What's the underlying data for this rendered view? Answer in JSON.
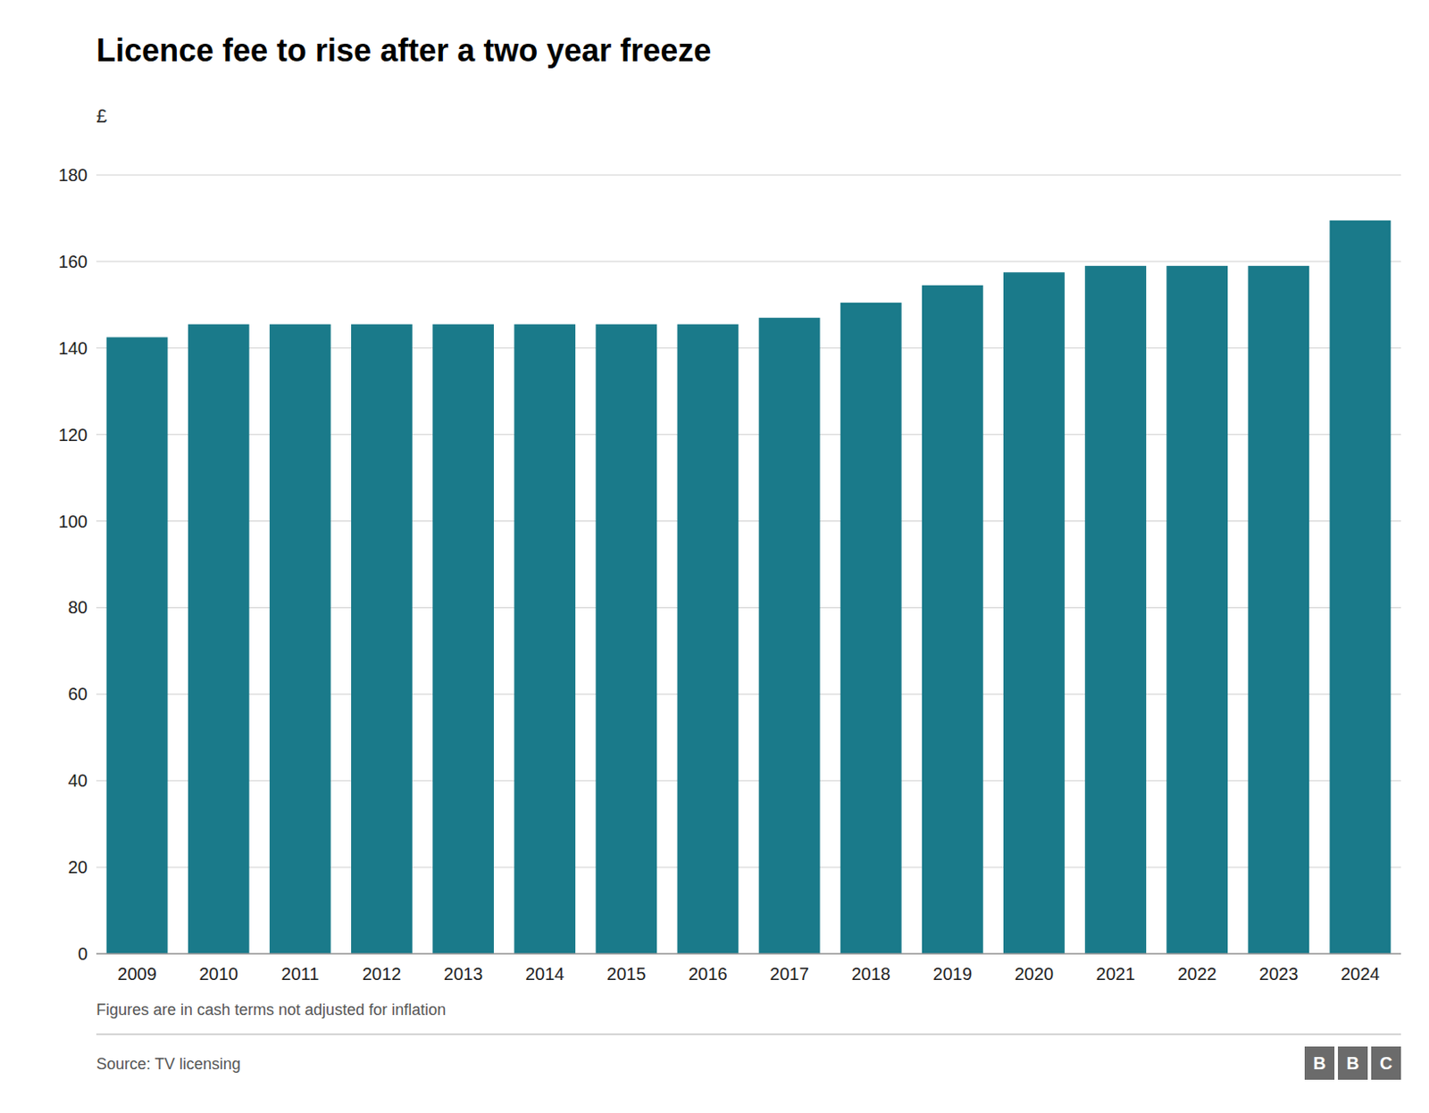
{
  "chart_data": {
    "type": "bar",
    "title": "Licence fee to rise after a two year freeze",
    "subtitle": "£",
    "annotations": [
      "Figures are in cash terms not adjusted for inflation",
      "Source: TV licensing",
      "BBC"
    ],
    "categories": [
      "2009",
      "2010",
      "2011",
      "2012",
      "2013",
      "2014",
      "2015",
      "2016",
      "2017",
      "2018",
      "2019",
      "2020",
      "2021",
      "2022",
      "2023",
      "2024"
    ],
    "values": [
      142.5,
      145.5,
      145.5,
      145.5,
      145.5,
      145.5,
      145.5,
      145.5,
      147.0,
      150.5,
      154.5,
      157.5,
      159.0,
      159.0,
      159.0,
      169.5
    ],
    "color": "#1a7a8a",
    "ylim": [
      0,
      180
    ],
    "yticks": [
      0,
      20,
      40,
      60,
      80,
      100,
      120,
      140,
      160,
      180
    ],
    "grid": true
  }
}
